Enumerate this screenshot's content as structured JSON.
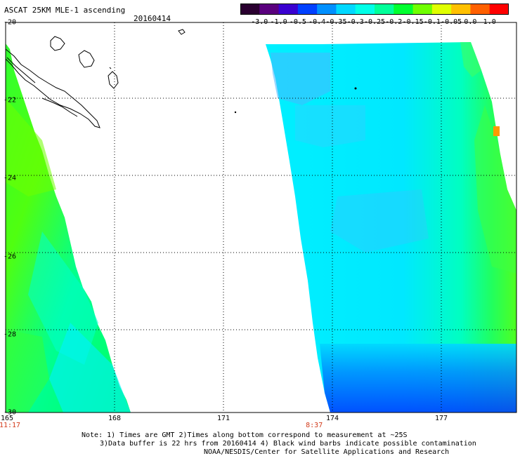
{
  "header": {
    "title": "ASCAT 25KM MLE-1 ascending",
    "date": "20160414"
  },
  "colorbar": {
    "labels": [
      "-3.0",
      "-1.0",
      "-0.5",
      "-0.4",
      "-0.35",
      "-0.3",
      "-0.25",
      "-0.2",
      "-0.15",
      "-0.1",
      "-0.05",
      "0.0",
      "1.0"
    ],
    "colors": [
      "#2a0030",
      "#5a007e",
      "#3a00d0",
      "#0040ff",
      "#0090ff",
      "#00d8ff",
      "#00ffe8",
      "#00ff9a",
      "#00ff30",
      "#70ff00",
      "#e0ff00",
      "#ffc000",
      "#ff6000",
      "#ff0000"
    ]
  },
  "axes": {
    "y_labels": [
      "-20",
      "-22",
      "-24",
      "-26",
      "-28",
      "-30"
    ],
    "x_labels": [
      "165",
      "168",
      "171",
      "174",
      "177"
    ],
    "time_labels": [
      {
        "text": "11:17",
        "lon": 165
      },
      {
        "text": "8:37",
        "lon": 173.5
      }
    ]
  },
  "notes": [
    "Note: 1) Times are GMT 2)Times along bottom correspond to measurement at ~25S",
    "3)Data buffer is 22 hrs from 20160414 4) Black wind barbs indicate possible contamination",
    "NOAA/NESDIS/Center for Satellite Applications and Research"
  ]
}
